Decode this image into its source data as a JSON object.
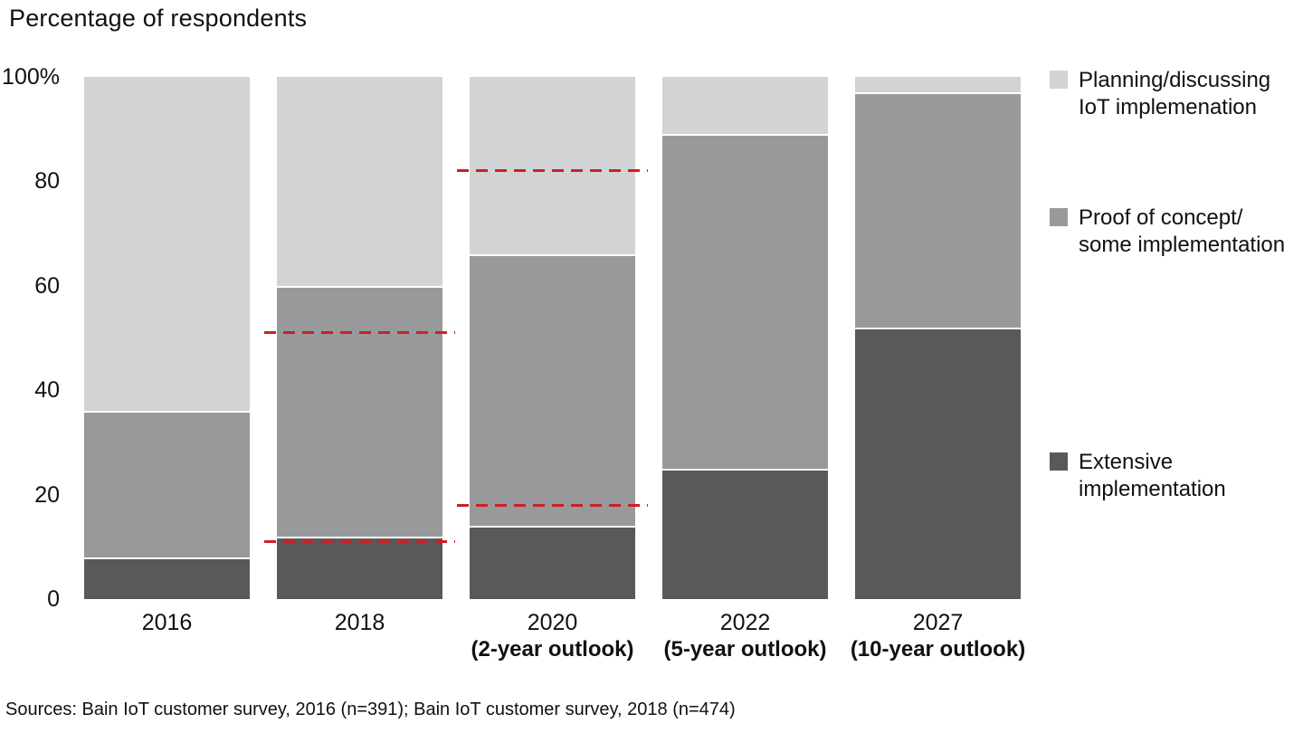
{
  "page": {
    "title": "Percentage of respondents",
    "source_note": "Sources: Bain IoT customer survey, 2016 (n=391); Bain IoT customer survey, 2018 (n=474)"
  },
  "legend": {
    "items": [
      {
        "line1": "Planning/discussing",
        "line2": "IoT implemenation",
        "color": "#d1d3d4"
      },
      {
        "line1": "Proof of concept/",
        "line2": "some implementation",
        "color": "#97999b"
      },
      {
        "line1": "Extensive",
        "line2": "implementation",
        "color": "#58595b"
      }
    ]
  },
  "chart_data": {
    "type": "bar",
    "variant": "stacked-vertical",
    "title": "Percentage of respondents",
    "unit": "percent",
    "ylim": [
      0,
      100
    ],
    "grid": false,
    "legend_position": "right",
    "categories": [
      {
        "year": "2016",
        "outlook": ""
      },
      {
        "year": "2018",
        "outlook": ""
      },
      {
        "year": "2020",
        "outlook": "(2-year outlook)"
      },
      {
        "year": "2022",
        "outlook": "(5-year outlook)"
      },
      {
        "year": "2027",
        "outlook": "(10-year outlook)"
      }
    ],
    "series": [
      {
        "name": "Extensive implementation",
        "color": "#58595b",
        "values": [
          8,
          12,
          14,
          25,
          52
        ]
      },
      {
        "name": "Proof of concept/some implementation",
        "color": "#97999b",
        "values": [
          28,
          48,
          52,
          64,
          45
        ]
      },
      {
        "name": "Planning/discussing IoT implemenation",
        "color": "#d1d3d4",
        "values": [
          64,
          40,
          34,
          11,
          3
        ]
      }
    ],
    "y_ticks": [
      {
        "value": 100,
        "label": "100%"
      },
      {
        "value": 80,
        "label": "80"
      },
      {
        "value": 60,
        "label": "60"
      },
      {
        "value": 40,
        "label": "40"
      },
      {
        "value": 20,
        "label": "20"
      },
      {
        "value": 0,
        "label": "0"
      }
    ],
    "dashed_reference_lines": [
      {
        "category": "2018",
        "value": 51,
        "color": "#cb2026"
      },
      {
        "category": "2018",
        "value": 11,
        "color": "#cb2026"
      },
      {
        "category": "2020",
        "value": 82,
        "color": "#cb2026"
      },
      {
        "category": "2020",
        "value": 18,
        "color": "#cb2026"
      }
    ]
  }
}
